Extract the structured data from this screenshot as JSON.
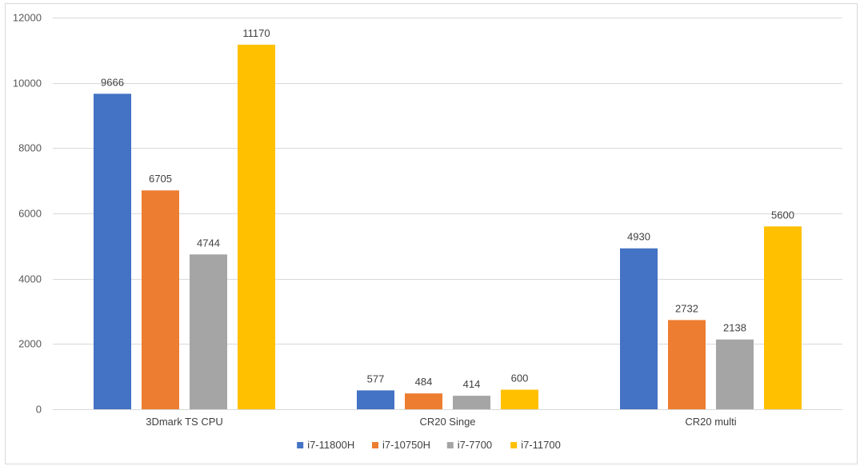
{
  "chart_data": {
    "type": "bar",
    "title": "",
    "xlabel": "",
    "ylabel": "",
    "categories": [
      "3Dmark TS CPU",
      "CR20 Singe",
      "CR20 multi"
    ],
    "series": [
      {
        "name": "i7-11800H",
        "color": "#4472C4",
        "values": [
          9666,
          577,
          4930
        ]
      },
      {
        "name": "i7-10750H",
        "color": "#ED7D31",
        "values": [
          6705,
          484,
          2732
        ]
      },
      {
        "name": "i7-7700",
        "color": "#A5A5A5",
        "values": [
          4744,
          414,
          2138
        ]
      },
      {
        "name": "i7-11700",
        "color": "#FFC000",
        "values": [
          11170,
          600,
          5600
        ]
      }
    ],
    "ylim": [
      0,
      12000
    ],
    "yticks": [
      0,
      2000,
      4000,
      6000,
      8000,
      10000,
      12000
    ],
    "grid": true,
    "legend_position": "bottom-center",
    "data_labels": true
  }
}
